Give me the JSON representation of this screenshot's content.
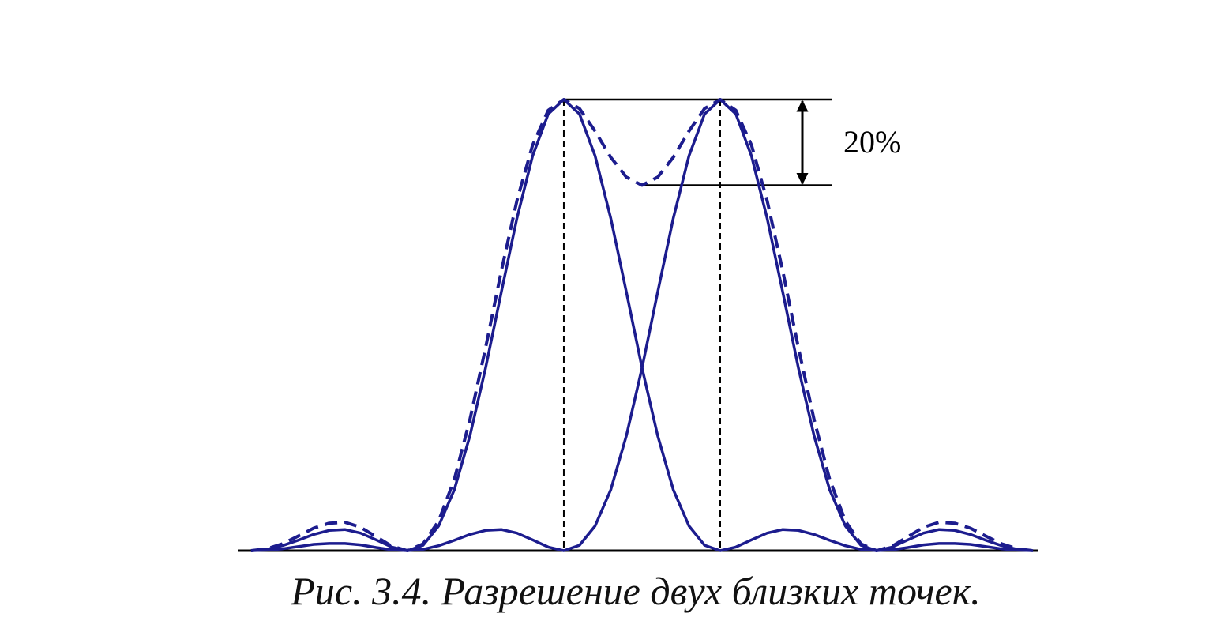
{
  "chart_data": {
    "type": "line",
    "caption": "Рис. 3.4. Разрешение двух близких точек.",
    "annotation": "20%",
    "x": [
      -2,
      -1.9,
      -1.8,
      -1.7,
      -1.6,
      -1.5,
      -1.4,
      -1.3,
      -1.2,
      -1.1,
      -1,
      -0.9,
      -0.8,
      -0.7,
      -0.6,
      -0.5,
      -0.4,
      -0.3,
      -0.2,
      -0.1,
      0,
      0.1,
      0.2,
      0.3,
      0.4,
      0.5,
      0.6,
      0.7,
      0.8,
      0.9,
      1,
      1.1,
      1.2,
      1.3,
      1.4,
      1.5,
      1.6,
      1.7,
      1.8,
      1.9,
      2,
      2.1,
      2.2,
      2.3,
      2.4,
      2.5,
      2.6,
      2.7,
      2.8,
      2.9,
      3
    ],
    "series": [
      {
        "color": "#1c1c8e",
        "dashed": false,
        "values": [
          0,
          0.003,
          0.011,
          0.023,
          0.036,
          0.045,
          0.047,
          0.039,
          0.024,
          0.008,
          0,
          0.012,
          0.055,
          0.135,
          0.255,
          0.405,
          0.573,
          0.737,
          0.875,
          0.968,
          1,
          0.968,
          0.875,
          0.737,
          0.573,
          0.405,
          0.255,
          0.135,
          0.055,
          0.012,
          0,
          0.008,
          0.024,
          0.039,
          0.047,
          0.045,
          0.036,
          0.023,
          0.011,
          0.003,
          0,
          0.002,
          0.007,
          0.013,
          0.016,
          0.016,
          0.014,
          0.009,
          0.004,
          0.001,
          0
        ]
      },
      {
        "color": "#1c1c8e",
        "dashed": false,
        "values": [
          0,
          0.001,
          0.004,
          0.009,
          0.014,
          0.016,
          0.016,
          0.013,
          0.007,
          0.002,
          0,
          0.003,
          0.011,
          0.023,
          0.036,
          0.045,
          0.047,
          0.039,
          0.024,
          0.008,
          0,
          0.012,
          0.055,
          0.135,
          0.255,
          0.405,
          0.573,
          0.737,
          0.875,
          0.968,
          1,
          0.968,
          0.875,
          0.737,
          0.573,
          0.405,
          0.255,
          0.135,
          0.055,
          0.012,
          0,
          0.008,
          0.024,
          0.039,
          0.047,
          0.045,
          0.036,
          0.023,
          0.011,
          0.003,
          0
        ]
      },
      {
        "color": "#1c1c8e",
        "dashed": true,
        "values": [
          0,
          0.004,
          0.015,
          0.032,
          0.05,
          0.061,
          0.063,
          0.052,
          0.031,
          0.01,
          0,
          0.015,
          0.066,
          0.158,
          0.291,
          0.45,
          0.62,
          0.776,
          0.899,
          0.976,
          1,
          0.98,
          0.93,
          0.872,
          0.828,
          0.81,
          0.828,
          0.872,
          0.93,
          0.98,
          1,
          0.976,
          0.899,
          0.776,
          0.62,
          0.45,
          0.291,
          0.158,
          0.066,
          0.015,
          0,
          0.01,
          0.031,
          0.052,
          0.063,
          0.061,
          0.05,
          0.032,
          0.015,
          0.004,
          0
        ]
      }
    ],
    "xlim": [
      -2.05,
      3.03
    ],
    "ylim": [
      0,
      1
    ]
  }
}
